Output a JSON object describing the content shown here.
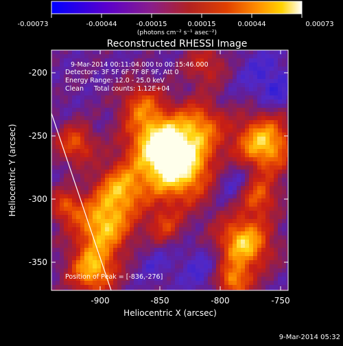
{
  "colorbar": {
    "tick_labels": [
      "-0.00073",
      "-0.00044",
      "-0.00015",
      "0.00015",
      "0.00044",
      "0.00073"
    ],
    "units": "(photons cm⁻² s⁻¹ asec⁻²)",
    "colors": [
      "#0000ff",
      "#5a00cc",
      "#8a1e8a",
      "#b22222",
      "#e04000",
      "#ff8c00",
      "#ffd200",
      "#ffffff"
    ]
  },
  "image": {
    "title": "Reconstructed RHESSI Image",
    "info": {
      "time_range": "9-Mar-2014 00:11:04.000 to 00:15:46.000",
      "detectors": "Detectors: 3F 5F 6F 7F 8F 9F, Att 0",
      "energy": "Energy Range: 12.0 - 25.0 keV",
      "clean": "Clean     Total counts: 1.12E+04"
    },
    "peak_label": "Position of Peak = [-836,-276]",
    "x_axis": {
      "label": "Heliocentric X (arcsec)",
      "range": [
        -940,
        -745
      ],
      "ticks": [
        -900,
        -850,
        -800,
        -750
      ],
      "tick_labels": [
        "-900",
        "-850",
        "-800",
        "-750"
      ]
    },
    "y_axis": {
      "label": "Heliocentric Y (arcsec)",
      "range": [
        -375,
        -185
      ],
      "ticks": [
        -200,
        -250,
        -300,
        -350
      ],
      "tick_labels": [
        "-200",
        "-250",
        "-300",
        "-350"
      ]
    }
  },
  "footer": {
    "timestamp": "9-Mar-2014 05:32"
  }
}
